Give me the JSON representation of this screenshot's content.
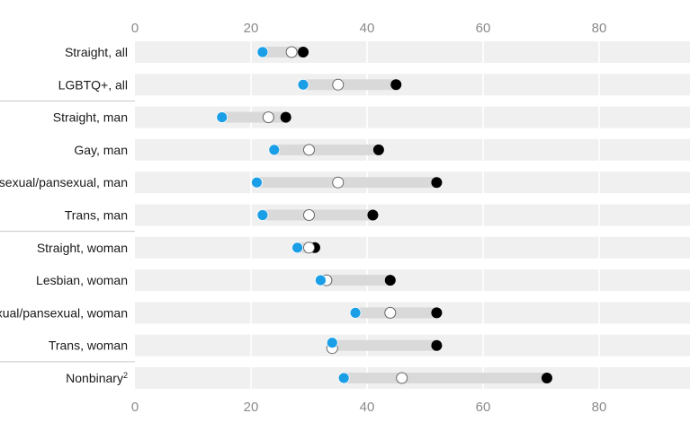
{
  "chart_data": {
    "type": "dot-range",
    "xlim": [
      0,
      95
    ],
    "x_ticks": [
      "0",
      "20",
      "40",
      "60",
      "80"
    ],
    "x_tick_values": [
      0,
      20,
      40,
      60,
      80
    ],
    "grid": true,
    "group_separators_after": [
      "LGBTQ+, all",
      "Trans, man",
      "Trans, woman"
    ],
    "colors": {
      "band": "#f0f0f0",
      "bar": "#d9d9d9",
      "grid": "#ffffff",
      "blue_dot": "#1a9ee6",
      "black_dot": "#000000",
      "white_dot": "#ffffff",
      "separator": "#c8c8c8"
    },
    "categories": [
      {
        "label": "Straight, all",
        "sup": "",
        "blue": 22,
        "white": 27,
        "black": 29
      },
      {
        "label": "LGBTQ+, all",
        "sup": "",
        "blue": 29,
        "white": 35,
        "black": 45
      },
      {
        "label": "Straight, man",
        "sup": "",
        "blue": 15,
        "white": 23,
        "black": 26
      },
      {
        "label": "Gay, man",
        "sup": "",
        "blue": 24,
        "white": 30,
        "black": 42
      },
      {
        "label": "Bisexual/pansexual, man",
        "sup": "",
        "blue": 21,
        "white": 35,
        "black": 52
      },
      {
        "label": "Trans, man",
        "sup": "",
        "blue": 22,
        "white": 30,
        "black": 41
      },
      {
        "label": "Straight, woman",
        "sup": "",
        "blue": 28,
        "white": 30,
        "black": 31
      },
      {
        "label": "Lesbian, woman",
        "sup": "",
        "blue": 32,
        "white": 33,
        "black": 44
      },
      {
        "label": "Bisexual/pansexual, woman",
        "sup": "",
        "blue": 38,
        "white": 44,
        "black": 52
      },
      {
        "label": "Trans, woman",
        "sup": "",
        "blue": 34,
        "white": 34,
        "black": 52
      },
      {
        "label": "Nonbinary",
        "sup": "2",
        "blue": 36,
        "white": 46,
        "black": 71
      }
    ]
  }
}
